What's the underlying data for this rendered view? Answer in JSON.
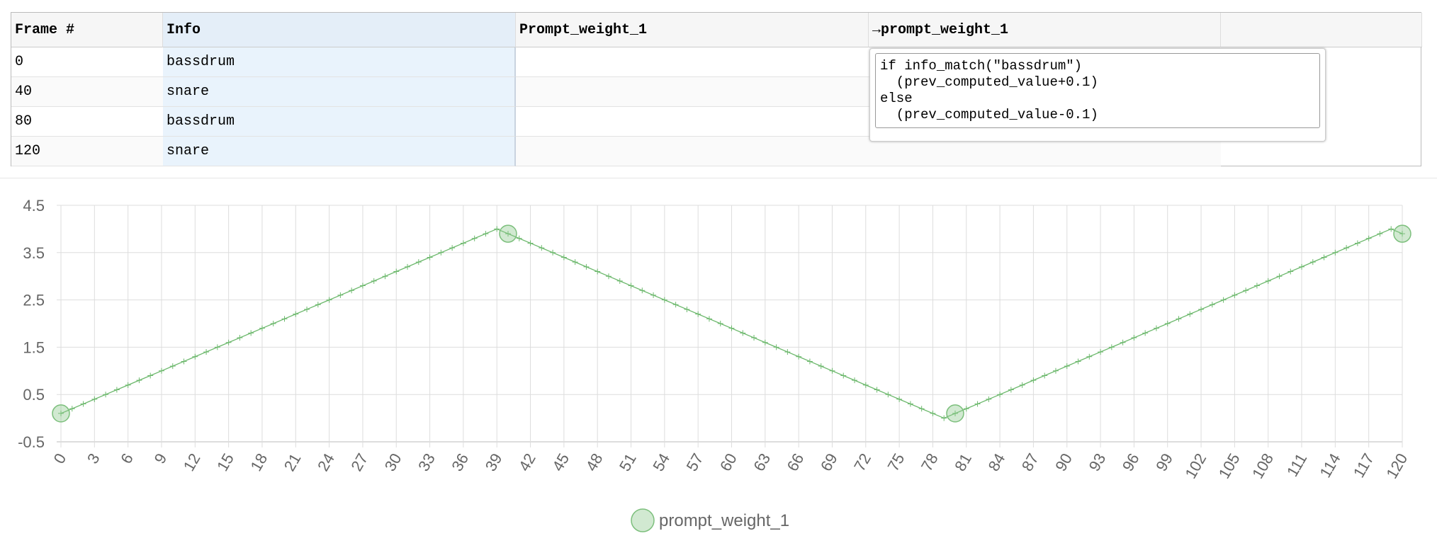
{
  "table": {
    "headers": [
      "Frame #",
      "Info",
      "Prompt_weight_1",
      "→prompt_weight_1"
    ],
    "rows": [
      [
        "0",
        "bassdrum"
      ],
      [
        "40",
        "snare"
      ],
      [
        "80",
        "bassdrum"
      ],
      [
        "120",
        "snare"
      ]
    ],
    "editor": "if info_match(\"bassdrum\")\n  (prev_computed_value+0.1)\nelse\n  (prev_computed_value-0.1)"
  },
  "chart_data": {
    "type": "line",
    "xlim": [
      0,
      120
    ],
    "xticks": [
      0,
      3,
      6,
      9,
      12,
      15,
      18,
      21,
      24,
      27,
      30,
      33,
      36,
      39,
      42,
      45,
      48,
      51,
      54,
      57,
      60,
      63,
      66,
      69,
      72,
      75,
      78,
      81,
      84,
      87,
      90,
      93,
      96,
      99,
      102,
      105,
      108,
      111,
      114,
      117,
      120
    ],
    "ylim": [
      -0.5,
      4.5
    ],
    "yticks": [
      -0.5,
      0.5,
      1.5,
      2.5,
      3.5,
      4.5
    ],
    "grid": true,
    "series": [
      {
        "name": "prompt_weight_1",
        "color": "#7cbf7c",
        "x": [
          0,
          40,
          80,
          120
        ],
        "values": [
          0.1,
          3.9,
          0.1,
          3.9
        ]
      },
      {
        "color": "#6cb86c",
        "x": [
          0,
          1,
          2,
          3,
          4,
          5,
          6,
          7,
          8,
          9,
          10,
          11,
          12,
          13,
          14,
          15,
          16,
          17,
          18,
          19,
          20,
          21,
          22,
          23,
          24,
          25,
          26,
          27,
          28,
          29,
          30,
          31,
          32,
          33,
          34,
          35,
          36,
          37,
          38,
          39,
          40,
          41,
          42,
          43,
          44,
          45,
          46,
          47,
          48,
          49,
          50,
          51,
          52,
          53,
          54,
          55,
          56,
          57,
          58,
          59,
          60,
          61,
          62,
          63,
          64,
          65,
          66,
          67,
          68,
          69,
          70,
          71,
          72,
          73,
          74,
          75,
          76,
          77,
          78,
          79,
          80,
          81,
          82,
          83,
          84,
          85,
          86,
          87,
          88,
          89,
          90,
          91,
          92,
          93,
          94,
          95,
          96,
          97,
          98,
          99,
          100,
          101,
          102,
          103,
          104,
          105,
          106,
          107,
          108,
          109,
          110,
          111,
          112,
          113,
          114,
          115,
          116,
          117,
          118,
          119,
          120
        ],
        "values": [
          0.1,
          0.2,
          0.3,
          0.4,
          0.5,
          0.6,
          0.7,
          0.8,
          0.9,
          1.0,
          1.1,
          1.2,
          1.3,
          1.4,
          1.5,
          1.6,
          1.7,
          1.8,
          1.9,
          2.0,
          2.1,
          2.2,
          2.3,
          2.4,
          2.5,
          2.6,
          2.7,
          2.8,
          2.9,
          3.0,
          3.1,
          3.2,
          3.3,
          3.4,
          3.5,
          3.6,
          3.7,
          3.8,
          3.9,
          4.0,
          3.9,
          3.8,
          3.7,
          3.6,
          3.5,
          3.4,
          3.3,
          3.2,
          3.1,
          3.0,
          2.9,
          2.8,
          2.7,
          2.6,
          2.5,
          2.4,
          2.3,
          2.2,
          2.1,
          2.0,
          1.9,
          1.8,
          1.7,
          1.6,
          1.5,
          1.4,
          1.3,
          1.2,
          1.1,
          1.0,
          0.9,
          0.8,
          0.7,
          0.6,
          0.5,
          0.4,
          0.3,
          0.2,
          0.1,
          0.0,
          0.1,
          0.2,
          0.3,
          0.4,
          0.5,
          0.6,
          0.7,
          0.8,
          0.9,
          1.0,
          1.1,
          1.2,
          1.3,
          1.4,
          1.5,
          1.6,
          1.7,
          1.8,
          1.9,
          2.0,
          2.1,
          2.2,
          2.3,
          2.4,
          2.5,
          2.6,
          2.7,
          2.8,
          2.9,
          3.0,
          3.1,
          3.2,
          3.3,
          3.4,
          3.5,
          3.6,
          3.7,
          3.8,
          3.9,
          4.0,
          3.9
        ]
      }
    ]
  }
}
